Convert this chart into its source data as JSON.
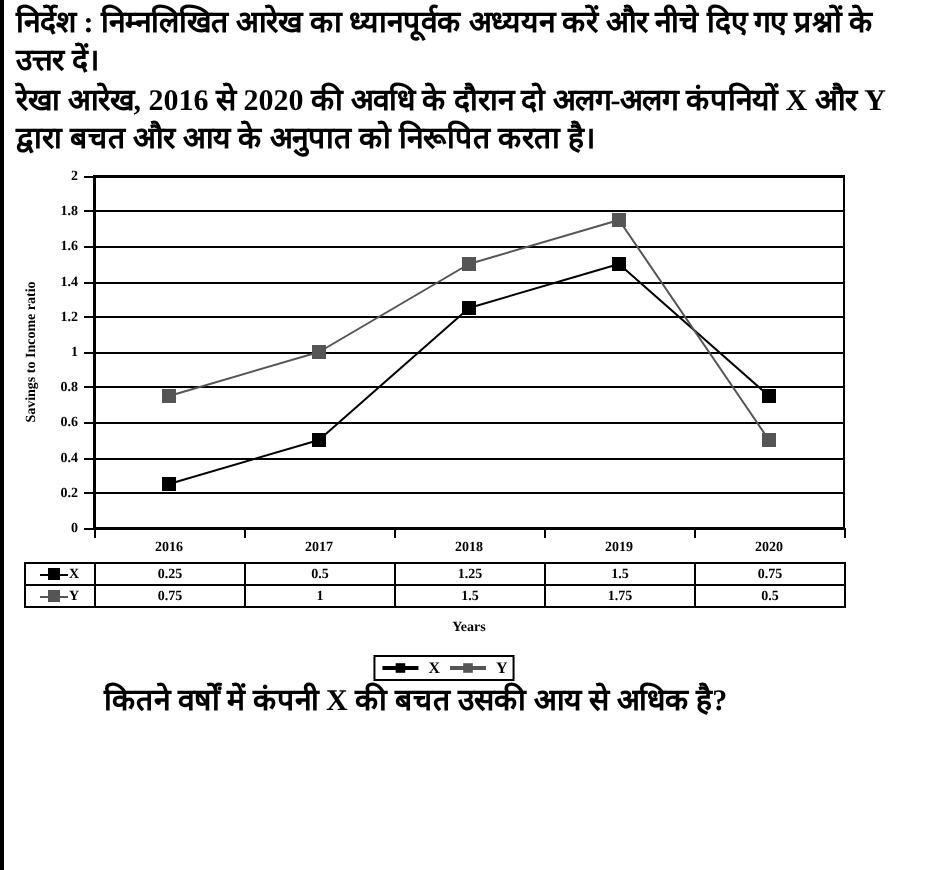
{
  "chart_data": {
    "type": "line",
    "title": "निर्देश : निम्नलिखित आरेख का ध्यानपूर्वक अध्ययन करें और नीचे दिए गए प्रश्नों के उत्तर दें।",
    "subtitle": "रेखा आरेख, 2016 से 2020 की अवधि के दौरान दो अलग-अलग कंपनियों X और Y द्वारा बचत और आय के अनुपात को निरूपित करता है।",
    "xlabel": "Years",
    "ylabel": "Savings to Income ratio",
    "annotations": [
      "कितने वर्षों में कंपनी X की बचत उसकी आय से अधिक है?"
    ],
    "categories": [
      "2016",
      "2017",
      "2018",
      "2019",
      "2020"
    ],
    "series": [
      {
        "name": "X",
        "color": "#000000",
        "values": [
          0.25,
          0.5,
          1.25,
          1.5,
          0.75
        ]
      },
      {
        "name": "Y",
        "color": "#555555",
        "values": [
          0.75,
          1,
          1.5,
          1.75,
          0.5
        ]
      }
    ],
    "ylim": [
      0,
      2
    ],
    "yticks": [
      0,
      0.2,
      0.4,
      0.6,
      0.8,
      1,
      1.2,
      1.4,
      1.6,
      1.8,
      2
    ],
    "grid": "y",
    "legend": "bottom",
    "marker": "square",
    "data_labels": true
  }
}
